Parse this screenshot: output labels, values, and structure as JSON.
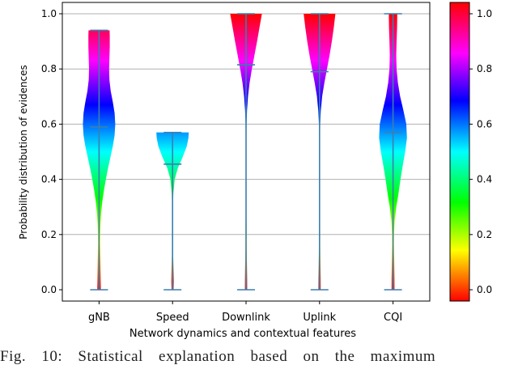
{
  "chart_data": {
    "type": "violin",
    "xlabel": "Network dynamics and contextual features",
    "ylabel": "Probability distribution of evidences",
    "ylim": [
      0,
      1.0
    ],
    "yticks": [
      "0.0",
      "0.2",
      "0.4",
      "0.6",
      "0.8",
      "1.0"
    ],
    "grid": "horizontal",
    "categories": [
      "gNB",
      "Speed",
      "Downlink",
      "Uplink",
      "CQI"
    ],
    "violins": [
      {
        "name": "gNB",
        "min": 0.0,
        "max": 0.94,
        "median": 0.59,
        "profile": [
          [
            0.0,
            0.11
          ],
          [
            0.04,
            0.1
          ],
          [
            0.08,
            0.09
          ],
          [
            0.12,
            0.08
          ],
          [
            0.16,
            0.07
          ],
          [
            0.2,
            0.07
          ],
          [
            0.24,
            0.09
          ],
          [
            0.28,
            0.13
          ],
          [
            0.32,
            0.2
          ],
          [
            0.36,
            0.3
          ],
          [
            0.4,
            0.42
          ],
          [
            0.44,
            0.55
          ],
          [
            0.48,
            0.7
          ],
          [
            0.52,
            0.85
          ],
          [
            0.56,
            0.96
          ],
          [
            0.6,
            1.0
          ],
          [
            0.64,
            0.96
          ],
          [
            0.68,
            0.85
          ],
          [
            0.72,
            0.72
          ],
          [
            0.76,
            0.64
          ],
          [
            0.8,
            0.62
          ],
          [
            0.84,
            0.64
          ],
          [
            0.88,
            0.66
          ],
          [
            0.92,
            0.66
          ],
          [
            0.94,
            0.65
          ]
        ]
      },
      {
        "name": "Speed",
        "min": 0.0,
        "max": 0.57,
        "median": 0.455,
        "profile": [
          [
            0.0,
            0.06
          ],
          [
            0.03,
            0.08
          ],
          [
            0.06,
            0.07
          ],
          [
            0.1,
            0.05
          ],
          [
            0.14,
            0.03
          ],
          [
            0.2,
            0.02
          ],
          [
            0.25,
            0.015
          ],
          [
            0.3,
            0.02
          ],
          [
            0.35,
            0.05
          ],
          [
            0.4,
            0.13
          ],
          [
            0.44,
            0.32
          ],
          [
            0.48,
            0.62
          ],
          [
            0.52,
            0.88
          ],
          [
            0.55,
            0.98
          ],
          [
            0.57,
            1.0
          ]
        ]
      },
      {
        "name": "Downlink",
        "min": 0.0,
        "max": 1.0,
        "median": 0.815,
        "profile": [
          [
            0.0,
            0.07
          ],
          [
            0.04,
            0.07
          ],
          [
            0.08,
            0.06
          ],
          [
            0.12,
            0.05
          ],
          [
            0.16,
            0.04
          ],
          [
            0.2,
            0.04
          ],
          [
            0.25,
            0.03
          ],
          [
            0.3,
            0.02
          ],
          [
            0.4,
            0.02
          ],
          [
            0.5,
            0.02
          ],
          [
            0.6,
            0.03
          ],
          [
            0.65,
            0.06
          ],
          [
            0.7,
            0.12
          ],
          [
            0.75,
            0.22
          ],
          [
            0.8,
            0.36
          ],
          [
            0.85,
            0.52
          ],
          [
            0.9,
            0.68
          ],
          [
            0.95,
            0.83
          ],
          [
            1.0,
            0.98
          ]
        ]
      },
      {
        "name": "Uplink",
        "min": 0.0,
        "max": 1.0,
        "median": 0.79,
        "profile": [
          [
            0.0,
            0.07
          ],
          [
            0.04,
            0.07
          ],
          [
            0.08,
            0.06
          ],
          [
            0.12,
            0.05
          ],
          [
            0.16,
            0.04
          ],
          [
            0.2,
            0.04
          ],
          [
            0.25,
            0.03
          ],
          [
            0.3,
            0.02
          ],
          [
            0.4,
            0.02
          ],
          [
            0.5,
            0.02
          ],
          [
            0.6,
            0.04
          ],
          [
            0.65,
            0.08
          ],
          [
            0.7,
            0.16
          ],
          [
            0.75,
            0.3
          ],
          [
            0.8,
            0.46
          ],
          [
            0.85,
            0.62
          ],
          [
            0.9,
            0.76
          ],
          [
            0.95,
            0.88
          ],
          [
            1.0,
            0.98
          ]
        ]
      },
      {
        "name": "CQI",
        "min": 0.0,
        "max": 1.0,
        "median": 0.57,
        "profile": [
          [
            0.0,
            0.09
          ],
          [
            0.04,
            0.09
          ],
          [
            0.08,
            0.08
          ],
          [
            0.12,
            0.07
          ],
          [
            0.16,
            0.06
          ],
          [
            0.2,
            0.06
          ],
          [
            0.25,
            0.1
          ],
          [
            0.3,
            0.2
          ],
          [
            0.35,
            0.34
          ],
          [
            0.4,
            0.46
          ],
          [
            0.45,
            0.6
          ],
          [
            0.5,
            0.75
          ],
          [
            0.55,
            0.86
          ],
          [
            0.6,
            0.82
          ],
          [
            0.65,
            0.64
          ],
          [
            0.7,
            0.44
          ],
          [
            0.75,
            0.3
          ],
          [
            0.8,
            0.22
          ],
          [
            0.85,
            0.2
          ],
          [
            0.9,
            0.22
          ],
          [
            0.95,
            0.25
          ],
          [
            1.0,
            0.26
          ]
        ]
      }
    ],
    "colorbar": {
      "min": 0.0,
      "max": 1.0,
      "ticks": [
        "0.0",
        "0.2",
        "0.4",
        "0.6",
        "0.8",
        "1.0"
      ],
      "colormap": "rainbow-hsv"
    },
    "colors": {
      "line": "#3a7fb0",
      "grid": "#b0b0b0",
      "axis": "#000000"
    }
  },
  "caption": "Fig. 10: Statistical explanation based on the maximum"
}
